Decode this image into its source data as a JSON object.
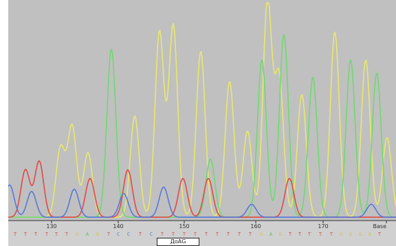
{
  "chart_data": {
    "type": "line",
    "title": "",
    "xlabel": "",
    "ylabel": "",
    "xlim": [
      0,
      576
    ],
    "ylim": [
      0,
      100
    ],
    "grid": false,
    "legend": "none",
    "position_ticks": [
      {
        "x": 75,
        "label": "130"
      },
      {
        "x": 172,
        "label": "140"
      },
      {
        "x": 268,
        "label": "150"
      },
      {
        "x": 372,
        "label": "160"
      },
      {
        "x": 470,
        "label": "170"
      },
      {
        "x": 562,
        "label": "Base"
      }
    ],
    "base_calls": [
      {
        "x": 22,
        "base": "T"
      },
      {
        "x": 37,
        "base": "T"
      },
      {
        "x": 52,
        "base": "T"
      },
      {
        "x": 68,
        "base": "T"
      },
      {
        "x": 82,
        "base": "T"
      },
      {
        "x": 97,
        "base": "T"
      },
      {
        "x": 112,
        "base": "G"
      },
      {
        "x": 127,
        "base": "A"
      },
      {
        "x": 142,
        "base": "G"
      },
      {
        "x": 158,
        "base": "T"
      },
      {
        "x": 172,
        "base": "C"
      },
      {
        "x": 187,
        "base": "C"
      },
      {
        "x": 204,
        "base": "T"
      },
      {
        "x": 220,
        "base": "C"
      },
      {
        "x": 236,
        "base": "T"
      },
      {
        "x": 252,
        "base": "T"
      },
      {
        "x": 268,
        "base": "T"
      },
      {
        "x": 284,
        "base": "T"
      },
      {
        "x": 300,
        "base": "T"
      },
      {
        "x": 316,
        "base": "T"
      },
      {
        "x": 332,
        "base": "T"
      },
      {
        "x": 348,
        "base": "T"
      },
      {
        "x": 364,
        "base": "T"
      },
      {
        "x": 380,
        "base": "G"
      },
      {
        "x": 394,
        "base": "A"
      },
      {
        "x": 408,
        "base": "G"
      },
      {
        "x": 422,
        "base": "T"
      },
      {
        "x": 436,
        "base": "T"
      },
      {
        "x": 450,
        "base": "T"
      },
      {
        "x": 466,
        "base": "T"
      },
      {
        "x": 482,
        "base": "T"
      },
      {
        "x": 496,
        "base": "G"
      },
      {
        "x": 510,
        "base": "G"
      },
      {
        "x": 524,
        "base": "G"
      },
      {
        "x": 538,
        "base": "G"
      },
      {
        "x": 552,
        "base": "T"
      }
    ],
    "cursor_label": "ДоАG",
    "series": [
      {
        "color": "#e8e870",
        "peaks": [
          {
            "x": 88,
            "h": 32
          },
          {
            "x": 105,
            "h": 42
          },
          {
            "x": 128,
            "h": 30
          },
          {
            "x": 196,
            "h": 47
          },
          {
            "x": 232,
            "h": 86
          },
          {
            "x": 252,
            "h": 89
          },
          {
            "x": 292,
            "h": 77
          },
          {
            "x": 334,
            "h": 63
          },
          {
            "x": 360,
            "h": 40
          },
          {
            "x": 389,
            "h": 100
          },
          {
            "x": 406,
            "h": 65
          },
          {
            "x": 439,
            "h": 57
          },
          {
            "x": 487,
            "h": 86
          },
          {
            "x": 532,
            "h": 73
          },
          {
            "x": 563,
            "h": 37
          }
        ]
      },
      {
        "color": "#70d870",
        "peaks": [
          {
            "x": 162,
            "h": 78
          },
          {
            "x": 306,
            "h": 27
          },
          {
            "x": 381,
            "h": 73
          },
          {
            "x": 413,
            "h": 85
          },
          {
            "x": 455,
            "h": 65
          },
          {
            "x": 510,
            "h": 73
          },
          {
            "x": 548,
            "h": 67
          }
        ]
      },
      {
        "color": "#e04848",
        "peaks": [
          {
            "x": 37,
            "h": 22
          },
          {
            "x": 57,
            "h": 26
          },
          {
            "x": 131,
            "h": 18
          },
          {
            "x": 186,
            "h": 22
          },
          {
            "x": 266,
            "h": 18
          },
          {
            "x": 303,
            "h": 18
          },
          {
            "x": 421,
            "h": 18
          }
        ]
      },
      {
        "color": "#5878d8",
        "peaks": [
          {
            "x": 14,
            "h": 15
          },
          {
            "x": 46,
            "h": 12
          },
          {
            "x": 108,
            "h": 13
          },
          {
            "x": 180,
            "h": 11
          },
          {
            "x": 238,
            "h": 14
          },
          {
            "x": 366,
            "h": 6
          },
          {
            "x": 540,
            "h": 6
          }
        ]
      }
    ]
  }
}
